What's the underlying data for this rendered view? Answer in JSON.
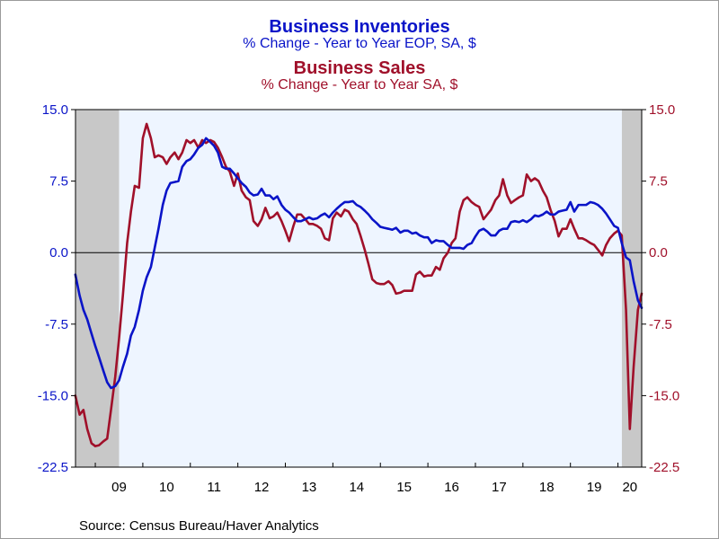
{
  "colors": {
    "inventories": "#0a14c8",
    "sales": "#a0102a",
    "plot_background": "#eef5ff",
    "recession_shade": "#c8c8c8",
    "axis": "#000000"
  },
  "chart_data": {
    "type": "line",
    "titles": [
      {
        "text": "Business Inventories",
        "color": "#0a14c8"
      },
      {
        "text": "% Change - Year to Year     EOP, SA, $",
        "color": "#0a14c8"
      },
      {
        "text": "Business Sales",
        "color": "#a0102a"
      },
      {
        "text": "% Change - Year to Year     SA, $",
        "color": "#a0102a"
      }
    ],
    "source": "Source:  Census Bureau/Haver Analytics",
    "x_range": [
      2008.583,
      2020.5
    ],
    "ylim": [
      -22.5,
      15.0
    ],
    "yticks": [
      "15.0",
      "7.5",
      "0.0",
      "-7.5",
      "-15.0",
      "-22.5"
    ],
    "ytick_values": [
      15,
      7.5,
      0,
      -7.5,
      -15,
      -22.5
    ],
    "xticks": [
      "09",
      "10",
      "11",
      "12",
      "13",
      "14",
      "15",
      "16",
      "17",
      "18",
      "19",
      "20"
    ],
    "xtick_years": [
      2009,
      2010,
      2011,
      2012,
      2013,
      2014,
      2015,
      2016,
      2017,
      2018,
      2019,
      2020
    ],
    "left_axis_color": "#0a14c8",
    "right_axis_color": "#a0102a",
    "zero_line": true,
    "recession_shading": [
      [
        2008.583,
        2009.5
      ],
      [
        2020.083,
        2020.5
      ]
    ],
    "series": [
      {
        "name": "Business Inventories",
        "axis": "left",
        "color": "#0a14c8",
        "points": [
          [
            2008.58,
            -2.3
          ],
          [
            2008.67,
            -4.5
          ],
          [
            2008.75,
            -6.0
          ],
          [
            2008.83,
            -7.0
          ],
          [
            2008.92,
            -8.5
          ],
          [
            2009.0,
            -9.8
          ],
          [
            2009.08,
            -11.0
          ],
          [
            2009.17,
            -12.4
          ],
          [
            2009.25,
            -13.6
          ],
          [
            2009.33,
            -14.2
          ],
          [
            2009.42,
            -14.0
          ],
          [
            2009.5,
            -13.4
          ],
          [
            2009.58,
            -12.0
          ],
          [
            2009.67,
            -10.6
          ],
          [
            2009.75,
            -8.7
          ],
          [
            2009.83,
            -7.8
          ],
          [
            2009.92,
            -6.0
          ],
          [
            2010.0,
            -4.0
          ],
          [
            2010.08,
            -2.6
          ],
          [
            2010.17,
            -1.5
          ],
          [
            2010.25,
            0.5
          ],
          [
            2010.33,
            2.5
          ],
          [
            2010.42,
            5.0
          ],
          [
            2010.5,
            6.5
          ],
          [
            2010.58,
            7.3
          ],
          [
            2010.67,
            7.4
          ],
          [
            2010.75,
            7.5
          ],
          [
            2010.83,
            9.0
          ],
          [
            2010.92,
            9.6
          ],
          [
            2011.0,
            9.8
          ],
          [
            2011.08,
            10.3
          ],
          [
            2011.17,
            11.0
          ],
          [
            2011.25,
            11.3
          ],
          [
            2011.33,
            12.0
          ],
          [
            2011.42,
            11.6
          ],
          [
            2011.5,
            11.2
          ],
          [
            2011.58,
            10.5
          ],
          [
            2011.67,
            9.0
          ],
          [
            2011.75,
            8.8
          ],
          [
            2011.83,
            8.8
          ],
          [
            2011.92,
            8.3
          ],
          [
            2012.0,
            7.8
          ],
          [
            2012.08,
            7.3
          ],
          [
            2012.17,
            6.9
          ],
          [
            2012.25,
            6.3
          ],
          [
            2012.33,
            6.0
          ],
          [
            2012.42,
            6.1
          ],
          [
            2012.5,
            6.7
          ],
          [
            2012.58,
            6.0
          ],
          [
            2012.67,
            6.0
          ],
          [
            2012.75,
            5.6
          ],
          [
            2012.83,
            5.9
          ],
          [
            2012.92,
            5.0
          ],
          [
            2013.0,
            4.5
          ],
          [
            2013.08,
            4.2
          ],
          [
            2013.17,
            3.7
          ],
          [
            2013.25,
            3.3
          ],
          [
            2013.33,
            3.3
          ],
          [
            2013.42,
            3.5
          ],
          [
            2013.5,
            3.7
          ],
          [
            2013.58,
            3.5
          ],
          [
            2013.67,
            3.6
          ],
          [
            2013.75,
            3.9
          ],
          [
            2013.83,
            4.1
          ],
          [
            2013.92,
            3.7
          ],
          [
            2014.0,
            4.2
          ],
          [
            2014.08,
            4.6
          ],
          [
            2014.17,
            5.0
          ],
          [
            2014.25,
            5.3
          ],
          [
            2014.33,
            5.3
          ],
          [
            2014.42,
            5.4
          ],
          [
            2014.5,
            5.0
          ],
          [
            2014.58,
            4.8
          ],
          [
            2014.67,
            4.4
          ],
          [
            2014.75,
            4.0
          ],
          [
            2014.83,
            3.5
          ],
          [
            2014.92,
            3.1
          ],
          [
            2015.0,
            2.7
          ],
          [
            2015.08,
            2.6
          ],
          [
            2015.17,
            2.5
          ],
          [
            2015.25,
            2.4
          ],
          [
            2015.33,
            2.6
          ],
          [
            2015.42,
            2.1
          ],
          [
            2015.5,
            2.3
          ],
          [
            2015.58,
            2.3
          ],
          [
            2015.67,
            2.0
          ],
          [
            2015.75,
            2.1
          ],
          [
            2015.83,
            1.8
          ],
          [
            2015.92,
            1.6
          ],
          [
            2016.0,
            1.6
          ],
          [
            2016.08,
            1.0
          ],
          [
            2016.17,
            1.3
          ],
          [
            2016.25,
            1.2
          ],
          [
            2016.33,
            1.2
          ],
          [
            2016.42,
            0.8
          ],
          [
            2016.5,
            0.5
          ],
          [
            2016.58,
            0.5
          ],
          [
            2016.67,
            0.5
          ],
          [
            2016.75,
            0.4
          ],
          [
            2016.83,
            0.8
          ],
          [
            2016.92,
            1.0
          ],
          [
            2017.0,
            1.7
          ],
          [
            2017.08,
            2.3
          ],
          [
            2017.17,
            2.5
          ],
          [
            2017.25,
            2.2
          ],
          [
            2017.33,
            1.8
          ],
          [
            2017.42,
            1.8
          ],
          [
            2017.5,
            2.3
          ],
          [
            2017.58,
            2.5
          ],
          [
            2017.67,
            2.5
          ],
          [
            2017.75,
            3.2
          ],
          [
            2017.83,
            3.3
          ],
          [
            2017.92,
            3.2
          ],
          [
            2018.0,
            3.4
          ],
          [
            2018.08,
            3.2
          ],
          [
            2018.17,
            3.5
          ],
          [
            2018.25,
            3.9
          ],
          [
            2018.33,
            3.8
          ],
          [
            2018.42,
            4.0
          ],
          [
            2018.5,
            4.3
          ],
          [
            2018.58,
            4.0
          ],
          [
            2018.67,
            4.0
          ],
          [
            2018.75,
            4.3
          ],
          [
            2018.83,
            4.4
          ],
          [
            2018.92,
            4.5
          ],
          [
            2019.0,
            5.3
          ],
          [
            2019.08,
            4.3
          ],
          [
            2019.17,
            5.0
          ],
          [
            2019.25,
            5.0
          ],
          [
            2019.33,
            5.0
          ],
          [
            2019.42,
            5.3
          ],
          [
            2019.5,
            5.2
          ],
          [
            2019.58,
            5.0
          ],
          [
            2019.67,
            4.6
          ],
          [
            2019.75,
            4.1
          ],
          [
            2019.83,
            3.5
          ],
          [
            2019.92,
            2.8
          ],
          [
            2020.0,
            2.6
          ],
          [
            2020.08,
            1.0
          ],
          [
            2020.17,
            -0.5
          ],
          [
            2020.25,
            -0.8
          ],
          [
            2020.33,
            -3.0
          ],
          [
            2020.42,
            -5.0
          ],
          [
            2020.5,
            -5.8
          ]
        ]
      },
      {
        "name": "Business Sales",
        "axis": "right",
        "color": "#a0102a",
        "points": [
          [
            2008.58,
            -15.0
          ],
          [
            2008.67,
            -17.0
          ],
          [
            2008.75,
            -16.5
          ],
          [
            2008.83,
            -18.5
          ],
          [
            2008.92,
            -20.0
          ],
          [
            2009.0,
            -20.3
          ],
          [
            2009.08,
            -20.2
          ],
          [
            2009.17,
            -19.8
          ],
          [
            2009.25,
            -19.5
          ],
          [
            2009.33,
            -16.5
          ],
          [
            2009.42,
            -13.0
          ],
          [
            2009.5,
            -9.0
          ],
          [
            2009.58,
            -4.5
          ],
          [
            2009.67,
            1.0
          ],
          [
            2009.75,
            4.3
          ],
          [
            2009.83,
            7.0
          ],
          [
            2009.92,
            6.8
          ],
          [
            2010.0,
            12.0
          ],
          [
            2010.08,
            13.5
          ],
          [
            2010.17,
            12.0
          ],
          [
            2010.25,
            10.0
          ],
          [
            2010.33,
            10.2
          ],
          [
            2010.42,
            10.0
          ],
          [
            2010.5,
            9.3
          ],
          [
            2010.58,
            10.0
          ],
          [
            2010.67,
            10.5
          ],
          [
            2010.75,
            9.8
          ],
          [
            2010.83,
            10.5
          ],
          [
            2010.92,
            11.8
          ],
          [
            2011.0,
            11.5
          ],
          [
            2011.08,
            11.8
          ],
          [
            2011.17,
            11.0
          ],
          [
            2011.25,
            11.8
          ],
          [
            2011.33,
            11.5
          ],
          [
            2011.42,
            11.8
          ],
          [
            2011.5,
            11.6
          ],
          [
            2011.58,
            11.0
          ],
          [
            2011.67,
            10.0
          ],
          [
            2011.75,
            9.0
          ],
          [
            2011.83,
            8.5
          ],
          [
            2011.92,
            7.0
          ],
          [
            2012.0,
            8.3
          ],
          [
            2012.08,
            6.5
          ],
          [
            2012.17,
            5.8
          ],
          [
            2012.25,
            5.5
          ],
          [
            2012.33,
            3.3
          ],
          [
            2012.42,
            2.8
          ],
          [
            2012.5,
            3.5
          ],
          [
            2012.58,
            4.7
          ],
          [
            2012.67,
            3.6
          ],
          [
            2012.75,
            3.8
          ],
          [
            2012.83,
            4.2
          ],
          [
            2012.92,
            3.3
          ],
          [
            2013.0,
            2.3
          ],
          [
            2013.08,
            1.2
          ],
          [
            2013.17,
            2.8
          ],
          [
            2013.25,
            4.0
          ],
          [
            2013.33,
            4.0
          ],
          [
            2013.42,
            3.5
          ],
          [
            2013.5,
            3.0
          ],
          [
            2013.58,
            3.0
          ],
          [
            2013.67,
            2.8
          ],
          [
            2013.75,
            2.5
          ],
          [
            2013.83,
            1.5
          ],
          [
            2013.92,
            1.3
          ],
          [
            2014.0,
            3.6
          ],
          [
            2014.08,
            4.2
          ],
          [
            2014.17,
            3.8
          ],
          [
            2014.25,
            4.5
          ],
          [
            2014.33,
            4.3
          ],
          [
            2014.42,
            3.5
          ],
          [
            2014.5,
            3.0
          ],
          [
            2014.58,
            1.8
          ],
          [
            2014.67,
            0.3
          ],
          [
            2014.75,
            -1.2
          ],
          [
            2014.83,
            -2.8
          ],
          [
            2014.92,
            -3.2
          ],
          [
            2015.0,
            -3.3
          ],
          [
            2015.08,
            -3.3
          ],
          [
            2015.17,
            -3.0
          ],
          [
            2015.25,
            -3.4
          ],
          [
            2015.33,
            -4.3
          ],
          [
            2015.42,
            -4.2
          ],
          [
            2015.5,
            -4.0
          ],
          [
            2015.58,
            -4.0
          ],
          [
            2015.67,
            -4.0
          ],
          [
            2015.75,
            -2.3
          ],
          [
            2015.83,
            -2.0
          ],
          [
            2015.92,
            -2.5
          ],
          [
            2016.0,
            -2.4
          ],
          [
            2016.08,
            -2.4
          ],
          [
            2016.17,
            -1.5
          ],
          [
            2016.25,
            -1.8
          ],
          [
            2016.33,
            -0.6
          ],
          [
            2016.42,
            0.0
          ],
          [
            2016.5,
            1.0
          ],
          [
            2016.58,
            1.5
          ],
          [
            2016.67,
            4.3
          ],
          [
            2016.75,
            5.5
          ],
          [
            2016.83,
            5.8
          ],
          [
            2016.92,
            5.3
          ],
          [
            2017.0,
            5.0
          ],
          [
            2017.08,
            4.8
          ],
          [
            2017.17,
            3.5
          ],
          [
            2017.25,
            4.0
          ],
          [
            2017.33,
            4.5
          ],
          [
            2017.42,
            5.5
          ],
          [
            2017.5,
            6.0
          ],
          [
            2017.58,
            7.7
          ],
          [
            2017.67,
            6.0
          ],
          [
            2017.75,
            5.2
          ],
          [
            2017.83,
            5.5
          ],
          [
            2017.92,
            5.8
          ],
          [
            2018.0,
            6.0
          ],
          [
            2018.08,
            8.2
          ],
          [
            2018.17,
            7.5
          ],
          [
            2018.25,
            7.8
          ],
          [
            2018.33,
            7.5
          ],
          [
            2018.42,
            6.5
          ],
          [
            2018.5,
            5.8
          ],
          [
            2018.58,
            4.5
          ],
          [
            2018.67,
            3.3
          ],
          [
            2018.75,
            1.7
          ],
          [
            2018.83,
            2.5
          ],
          [
            2018.92,
            2.5
          ],
          [
            2019.0,
            3.5
          ],
          [
            2019.08,
            2.5
          ],
          [
            2019.17,
            1.5
          ],
          [
            2019.25,
            1.5
          ],
          [
            2019.33,
            1.3
          ],
          [
            2019.42,
            1.0
          ],
          [
            2019.5,
            0.8
          ],
          [
            2019.58,
            0.3
          ],
          [
            2019.67,
            -0.3
          ],
          [
            2019.75,
            0.8
          ],
          [
            2019.83,
            1.5
          ],
          [
            2019.92,
            2.0
          ],
          [
            2020.0,
            2.3
          ],
          [
            2020.08,
            1.8
          ],
          [
            2020.17,
            -6.0
          ],
          [
            2020.25,
            -18.5
          ],
          [
            2020.33,
            -12.0
          ],
          [
            2020.42,
            -6.0
          ],
          [
            2020.5,
            -4.3
          ]
        ]
      }
    ]
  }
}
